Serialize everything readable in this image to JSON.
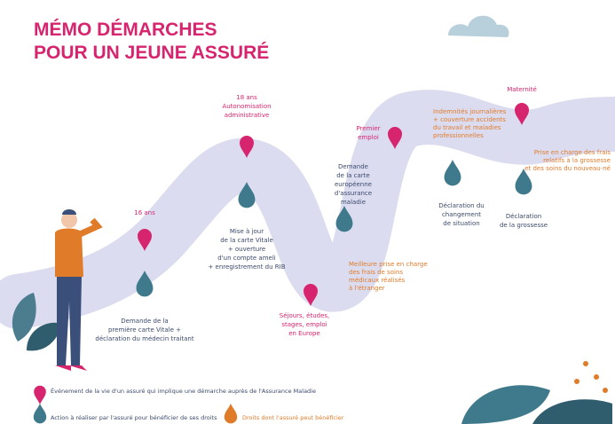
{
  "header": {
    "title_lines": [
      "MÉMO DÉMARCHES",
      "POUR UN JEUNE ASSURÉ"
    ]
  },
  "events": [
    {
      "lines": [
        "16 ans"
      ]
    },
    {
      "lines": [
        "18 ans",
        "Autonomisation",
        "administrative"
      ]
    },
    {
      "lines": [
        "Séjours, études,",
        "stages, emploi",
        "en Europe"
      ]
    },
    {
      "lines": [
        "Premier",
        "emploi"
      ]
    },
    {
      "lines": [
        "Maternité"
      ]
    }
  ],
  "actions": [
    {
      "lines": [
        "Demande de la",
        "première carte Vitale +",
        "déclaration du médecin traitant"
      ]
    },
    {
      "lines": [
        "Mise à jour",
        "de la carte Vitale",
        "+ ouverture",
        "d'un compte ameli",
        "+ enregistrement du RIB"
      ]
    },
    {
      "lines": [
        "Demande",
        "de la carte",
        "européenne",
        "d'assurance",
        "maladie"
      ]
    },
    {
      "lines": [
        "Déclaration du",
        "changement",
        "de situation"
      ]
    },
    {
      "lines": [
        "Déclaration",
        "de la grossesse"
      ]
    }
  ],
  "rights": [
    {
      "lines": [
        "Meilleure prise en charge",
        "des frais de soins",
        "médicaux réalisés",
        "à l'étranger"
      ]
    },
    {
      "lines": [
        "Indemnités journalières",
        "+ couverture accidents",
        "du travail et maladies",
        "professionnelles"
      ]
    },
    {
      "lines": [
        "Prise en charge des frais",
        "relatifs à la grossesse",
        "et des soins du nouveau-né"
      ]
    }
  ],
  "legend": [
    {
      "label": "Événement de la vie d'un assuré qui implique une démarche auprès de l'Assurance Maladie"
    },
    {
      "label": "Action à réaliser par l'assuré pour bénéficier de ses droits"
    },
    {
      "label": "Droits dont l'assuré peut bénéficier"
    }
  ]
}
